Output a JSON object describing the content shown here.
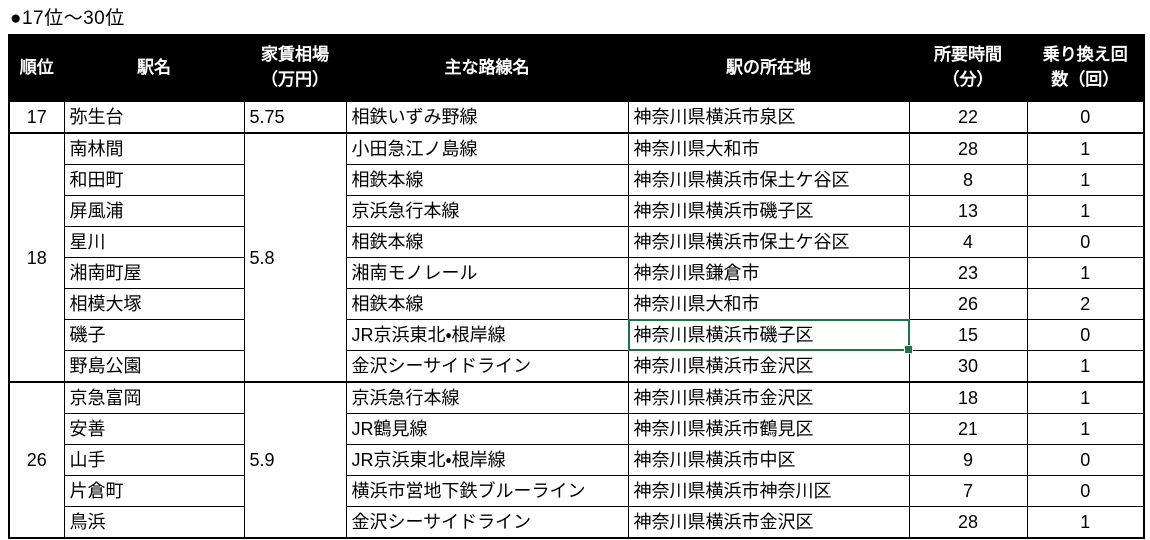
{
  "title": "●17位～30位",
  "colors": {
    "header_bg": "#000000",
    "header_text": "#ffffff",
    "selection_green": "#217346",
    "grid_border": "#000000"
  },
  "table": {
    "headers": [
      "順位",
      "駅名",
      "家賃相場\n（万円）",
      "主な路線名",
      "駅の所在地",
      "所要時間\n（分）",
      "乗り換え回\n数（回）"
    ],
    "groups": [
      {
        "rank": "17",
        "rent": "5.75",
        "rows": [
          {
            "station": "弥生台",
            "line": "相鉄いずみ野線",
            "location": "神奈川県横浜市泉区",
            "time": "22",
            "transfers": "0"
          }
        ]
      },
      {
        "rank": "18",
        "rent": "5.8",
        "rows": [
          {
            "station": "南林間",
            "line": "小田急江ノ島線",
            "location": "神奈川県大和市",
            "time": "28",
            "transfers": "1"
          },
          {
            "station": "和田町",
            "line": "相鉄本線",
            "location": "神奈川県横浜市保土ケ谷区",
            "time": "8",
            "transfers": "1"
          },
          {
            "station": "屏風浦",
            "line": "京浜急行本線",
            "location": "神奈川県横浜市磯子区",
            "time": "13",
            "transfers": "1"
          },
          {
            "station": "星川",
            "line": "相鉄本線",
            "location": "神奈川県横浜市保土ケ谷区",
            "time": "4",
            "transfers": "0"
          },
          {
            "station": "湘南町屋",
            "line": "湘南モノレール",
            "location": "神奈川県鎌倉市",
            "time": "23",
            "transfers": "1"
          },
          {
            "station": "相模大塚",
            "line": "相鉄本線",
            "location": "神奈川県大和市",
            "time": "26",
            "transfers": "2"
          },
          {
            "station": "磯子",
            "line": "JR京浜東北・根岸線",
            "location": "神奈川県横浜市磯子区",
            "time": "15",
            "transfers": "0",
            "selected": true
          },
          {
            "station": "野島公園",
            "line": "金沢シーサイドライン",
            "location": "神奈川県横浜市金沢区",
            "time": "30",
            "transfers": "1"
          }
        ]
      },
      {
        "rank": "26",
        "rent": "5.9",
        "rows": [
          {
            "station": "京急富岡",
            "line": "京浜急行本線",
            "location": "神奈川県横浜市金沢区",
            "time": "18",
            "transfers": "1"
          },
          {
            "station": "安善",
            "line": "JR鶴見線",
            "location": "神奈川県横浜市鶴見区",
            "time": "21",
            "transfers": "1"
          },
          {
            "station": "山手",
            "line": "JR京浜東北・根岸線",
            "location": "神奈川県横浜市中区",
            "time": "9",
            "transfers": "0"
          },
          {
            "station": "片倉町",
            "line": "横浜市営地下鉄ブルーライン",
            "location": "神奈川県横浜市神奈川区",
            "time": "7",
            "transfers": "0"
          },
          {
            "station": "鳥浜",
            "line": "金沢シーサイドライン",
            "location": "神奈川県横浜市金沢区",
            "time": "28",
            "transfers": "1"
          }
        ]
      }
    ]
  }
}
